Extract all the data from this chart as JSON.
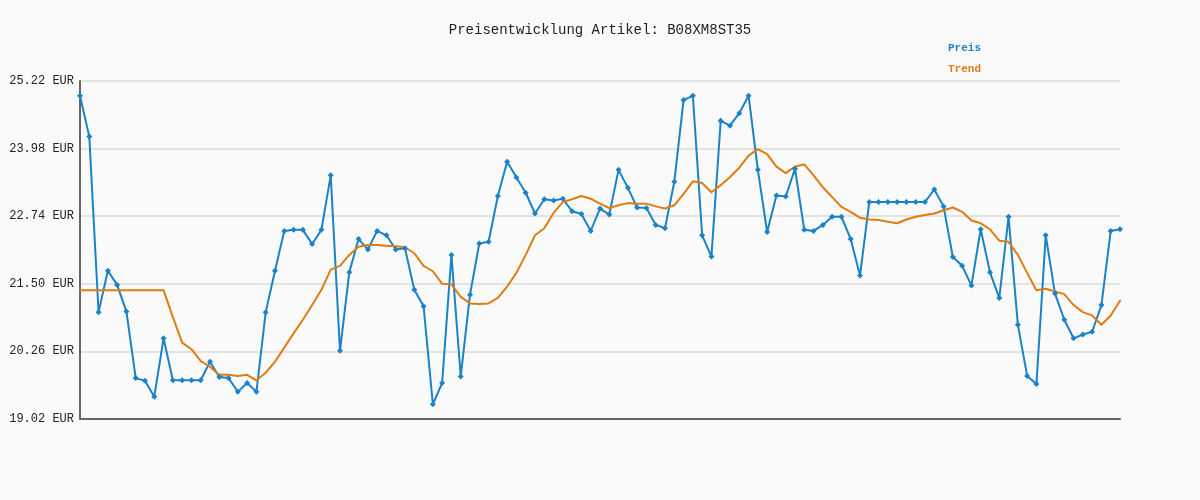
{
  "chart_data": {
    "type": "line",
    "title": "Preisentwicklung Artikel: B08XM8ST35",
    "categories": [
      null,
      null,
      null,
      null,
      null,
      null,
      null,
      null,
      null,
      null,
      null,
      null,
      null,
      null,
      null,
      null,
      null,
      null,
      null,
      null,
      null,
      null,
      null,
      null,
      null,
      null,
      null,
      null,
      null,
      null,
      null,
      null,
      null,
      null,
      null,
      null,
      null,
      null,
      null,
      null,
      null,
      null,
      null,
      null,
      null,
      null,
      null,
      null,
      null,
      null,
      null,
      null,
      null,
      null,
      null,
      null,
      null,
      null,
      null,
      null,
      null,
      null,
      null,
      null,
      null,
      null,
      null,
      null,
      null,
      null,
      null,
      null,
      null,
      null,
      null,
      null,
      null,
      null,
      null,
      null,
      null,
      null,
      null,
      null,
      null,
      null,
      null,
      null,
      null,
      null,
      null,
      null,
      null,
      null,
      null,
      null,
      null,
      null,
      null,
      null,
      null,
      null,
      null,
      null,
      null,
      null,
      null,
      null,
      null,
      null,
      null,
      null,
      null
    ],
    "series": [
      {
        "name": "Preis",
        "color": "#1a82c8",
        "marker": "diamond",
        "values": [
          24.95,
          24.2,
          20.98,
          21.74,
          21.48,
          20.99,
          19.77,
          19.72,
          19.43,
          20.5,
          19.73,
          19.73,
          19.73,
          19.73,
          20.07,
          19.79,
          19.77,
          19.52,
          19.68,
          19.52,
          20.98,
          21.74,
          22.47,
          22.49,
          22.49,
          22.23,
          22.49,
          23.49,
          20.27,
          21.71,
          22.32,
          22.13,
          22.47,
          22.39,
          22.13,
          22.15,
          21.39,
          21.09,
          19.29,
          19.68,
          22.03,
          19.8,
          21.3,
          22.24,
          22.27,
          23.11,
          23.74,
          23.45,
          23.17,
          22.79,
          23.05,
          23.03,
          23.06,
          22.83,
          22.78,
          22.47,
          22.88,
          22.77,
          23.59,
          23.26,
          22.9,
          22.89,
          22.58,
          22.52,
          23.37,
          24.87,
          24.95,
          22.39,
          22.0,
          24.49,
          24.4,
          24.63,
          24.95,
          23.59,
          22.45,
          23.12,
          23.1,
          23.61,
          22.49,
          22.47,
          22.58,
          22.73,
          22.73,
          22.32,
          21.65,
          23.0,
          23.0,
          23.0,
          23.0,
          23.0,
          23.0,
          23.0,
          23.23,
          22.92,
          21.99,
          21.83,
          21.47,
          22.5,
          21.71,
          21.24,
          22.73,
          20.75,
          19.81,
          19.66,
          22.39,
          21.32,
          20.84,
          20.5,
          20.57,
          20.62,
          21.11,
          22.47,
          22.5
        ]
      },
      {
        "name": "Trend",
        "color": "#e07c10",
        "marker": "none",
        "values": [
          21.38,
          21.38,
          21.38,
          21.38,
          21.38,
          21.38,
          21.38,
          21.38,
          21.38,
          21.38,
          20.89,
          20.42,
          20.3,
          20.08,
          19.98,
          19.83,
          19.83,
          19.81,
          19.83,
          19.73,
          19.87,
          20.07,
          20.33,
          20.59,
          20.84,
          21.11,
          21.39,
          21.76,
          21.83,
          22.03,
          22.18,
          22.21,
          22.21,
          22.2,
          22.19,
          22.17,
          22.06,
          21.83,
          21.73,
          21.5,
          21.49,
          21.26,
          21.14,
          21.13,
          21.14,
          21.24,
          21.45,
          21.7,
          22.03,
          22.39,
          22.52,
          22.8,
          23.0,
          23.05,
          23.11,
          23.06,
          22.97,
          22.89,
          22.94,
          22.98,
          22.97,
          22.97,
          22.92,
          22.88,
          22.94,
          23.15,
          23.38,
          23.35,
          23.18,
          23.31,
          23.46,
          23.63,
          23.85,
          23.97,
          23.88,
          23.65,
          23.53,
          23.65,
          23.69,
          23.49,
          23.27,
          23.09,
          22.91,
          22.82,
          22.71,
          22.68,
          22.67,
          22.64,
          22.61,
          22.68,
          22.73,
          22.76,
          22.79,
          22.85,
          22.9,
          22.82,
          22.66,
          22.61,
          22.5,
          22.29,
          22.27,
          22.03,
          21.7,
          21.38,
          21.41,
          21.36,
          21.31,
          21.11,
          20.98,
          20.92,
          20.75,
          20.92,
          21.19
        ]
      }
    ],
    "ylim": [
      19.02,
      25.22
    ],
    "yticks": [
      {
        "value": 19.02,
        "label": "19.02 EUR"
      },
      {
        "value": 20.26,
        "label": "20.26 EUR"
      },
      {
        "value": 21.5,
        "label": "21.50 EUR"
      },
      {
        "value": 22.74,
        "label": "22.74 EUR"
      },
      {
        "value": 23.98,
        "label": "23.98 EUR"
      },
      {
        "value": 25.22,
        "label": "25.22 EUR"
      }
    ],
    "grid": "y",
    "legend": "top right",
    "tick_labels": "y",
    "line_style": "solid"
  }
}
